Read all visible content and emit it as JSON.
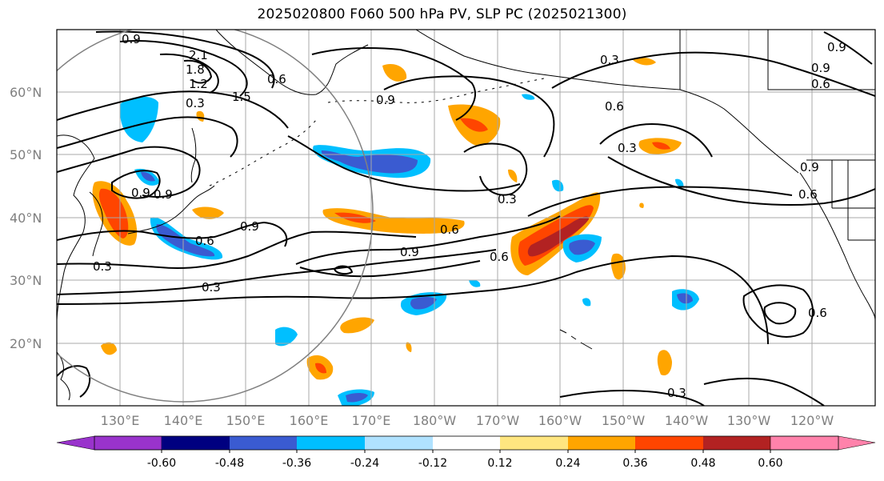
{
  "title": "2025020800 F060 500 hPa PV, SLP PC (2025021300)",
  "map": {
    "lat_labels": [
      "60°N",
      "50°N",
      "40°N",
      "30°N",
      "20°N"
    ],
    "lon_labels": [
      "130°E",
      "140°E",
      "150°E",
      "160°E",
      "170°E",
      "180°W",
      "170°W",
      "160°W",
      "150°W",
      "140°W",
      "130°W",
      "120°W"
    ],
    "contour_labels": [
      "0.9",
      "2.1",
      "1.8",
      "1.2",
      "1.5",
      "0.6",
      "0.3",
      "0.9",
      "0.9",
      "0.3",
      "0.6",
      "0.3",
      "0.9",
      "0.6",
      "0.3",
      "0.9",
      "0.6",
      "0.9",
      "0.6",
      "0.9",
      "0.6",
      "0.3",
      "0.6",
      "0.3",
      "0.9",
      "0.9",
      "0.6",
      "0.3"
    ]
  },
  "colorbar": {
    "colors": [
      "#9933cc",
      "#000080",
      "#3a5bd1",
      "#00bfff",
      "#b0e2ff",
      "#ffffff",
      "#ffe680",
      "#ffa500",
      "#ff4500",
      "#b22222",
      "#ff82ab"
    ],
    "tick_labels": [
      "-0.60",
      "-0.48",
      "-0.36",
      "-0.24",
      "-0.12",
      "0.12",
      "0.24",
      "0.36",
      "0.48",
      "0.60"
    ]
  }
}
